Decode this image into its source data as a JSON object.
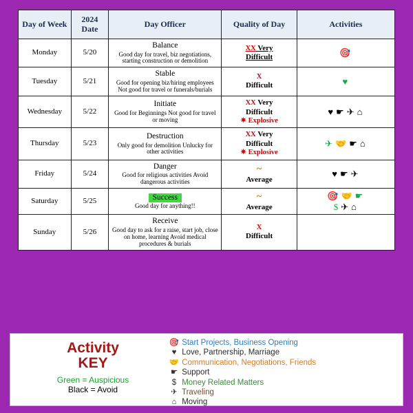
{
  "colors": {
    "page_bg": "#9c27b0",
    "header_bg": "#e8eef5",
    "header_text": "#1a2a4a",
    "border": "#222222",
    "red": "#d40000",
    "orange": "#cc7a00",
    "highlight": "#3fd93f",
    "green_icon": "#18a84a",
    "key_title": "#a01818",
    "key_green": "#18a030"
  },
  "headers": {
    "dow": "Day of Week",
    "date": "2024 Date",
    "officer": "Day Officer",
    "quality": "Quality of Day",
    "activities": "Activities"
  },
  "rows": [
    {
      "dow": "Monday",
      "date": "5/20",
      "officer_title": "Balance",
      "officer_desc": "Good day for travel, biz negotiations, starting construction or demolition",
      "q_mark": "XX",
      "q_mark_suffix": "  Very",
      "q_mark_underline": true,
      "q_label": "Difficult",
      "q_label_underline": true,
      "explosive": false,
      "icons": [
        {
          "g": "🎯",
          "c": "black"
        }
      ]
    },
    {
      "dow": "Tuesday",
      "date": "5/21",
      "officer_title": "Stable",
      "officer_desc": "Good for opening biz/hiring employees Not good for travel or funerals/burials",
      "q_mark": "X",
      "q_mark_suffix": "",
      "q_mark_underline": false,
      "q_label": "Difficult",
      "q_label_underline": false,
      "explosive": false,
      "icons": [
        {
          "g": "♥",
          "c": "green"
        }
      ]
    },
    {
      "dow": "Wednesday",
      "date": "5/22",
      "officer_title": "Initiate",
      "officer_desc": "Good for Beginnings Not good for travel or moving",
      "q_mark": "XX",
      "q_mark_suffix": " Very",
      "q_mark_underline": false,
      "q_label": "Difficult",
      "q_label_underline": false,
      "explosive": true,
      "icons": [
        {
          "g": "♥",
          "c": "black"
        },
        {
          "g": "☛",
          "c": "black"
        },
        {
          "g": "✈",
          "c": "black"
        },
        {
          "g": "⌂",
          "c": "black"
        }
      ]
    },
    {
      "dow": "Thursday",
      "date": "5/23",
      "officer_title": "Destruction",
      "officer_desc": "Only good for demolition Unlucky for other activities",
      "q_mark": "XX",
      "q_mark_suffix": " Very",
      "q_mark_underline": false,
      "q_label": "Difficult",
      "q_label_underline": false,
      "explosive": true,
      "icons": [
        {
          "g": "✈",
          "c": "green"
        },
        {
          "g": "🤝",
          "c": "black"
        },
        {
          "g": "☛",
          "c": "black"
        },
        {
          "g": "⌂",
          "c": "black"
        }
      ]
    },
    {
      "dow": "Friday",
      "date": "5/24",
      "officer_title": "Danger",
      "officer_desc": "Good for religious activities Avoid dangerous activities",
      "q_mark": "~",
      "q_mark_suffix": "",
      "q_mark_orange": true,
      "q_label": "Average",
      "q_label_underline": false,
      "explosive": false,
      "icons": [
        {
          "g": "♥",
          "c": "black"
        },
        {
          "g": "☛",
          "c": "black"
        },
        {
          "g": "✈",
          "c": "black"
        }
      ]
    },
    {
      "dow": "Saturday",
      "date": "5/25",
      "officer_title": "Success",
      "officer_title_highlight": true,
      "officer_desc": "Good day for anything!!",
      "q_mark": "~",
      "q_mark_suffix": "",
      "q_mark_orange": true,
      "q_label": "Average",
      "q_label_underline": false,
      "explosive": false,
      "icons": [
        {
          "g": "🎯",
          "c": "green"
        },
        {
          "g": "🤝",
          "c": "green"
        },
        {
          "g": "☛",
          "c": "green"
        },
        {
          "g": "$",
          "c": "green"
        },
        {
          "g": "✈",
          "c": "black"
        },
        {
          "g": "⌂",
          "c": "black"
        }
      ]
    },
    {
      "dow": "Sunday",
      "date": "5/26",
      "officer_title": "Receive",
      "officer_desc": "Good day to ask for a raise, start job, close on home, learning Avoid medical procedures & burials",
      "q_mark": "X",
      "q_mark_suffix": "",
      "q_mark_underline": false,
      "q_label": "Difficult",
      "q_label_underline": false,
      "explosive": false,
      "icons": []
    }
  ],
  "explosive_label": "✷ Explosive",
  "key": {
    "title1": "Activity",
    "title2": "KEY",
    "auspicious": "Green = Auspicious",
    "avoid": "Black = Avoid",
    "items": [
      {
        "icon": "🎯",
        "label": "Start Projects, Business Opening",
        "color_class": "c-blue"
      },
      {
        "icon": "♥",
        "label": "Love, Partnership, Marriage",
        "color_class": "c-dark"
      },
      {
        "icon": "🤝",
        "label": "Communication, Negotiations, Friends",
        "color_class": "c-orange"
      },
      {
        "icon": "☛",
        "label": "Support",
        "color_class": "c-dark"
      },
      {
        "icon": "$",
        "label": "Money Related Matters",
        "color_class": "c-green"
      },
      {
        "icon": "✈",
        "label": "Traveling",
        "color_class": "c-brown"
      },
      {
        "icon": "⌂",
        "label": "Moving",
        "color_class": "c-dark"
      }
    ]
  }
}
